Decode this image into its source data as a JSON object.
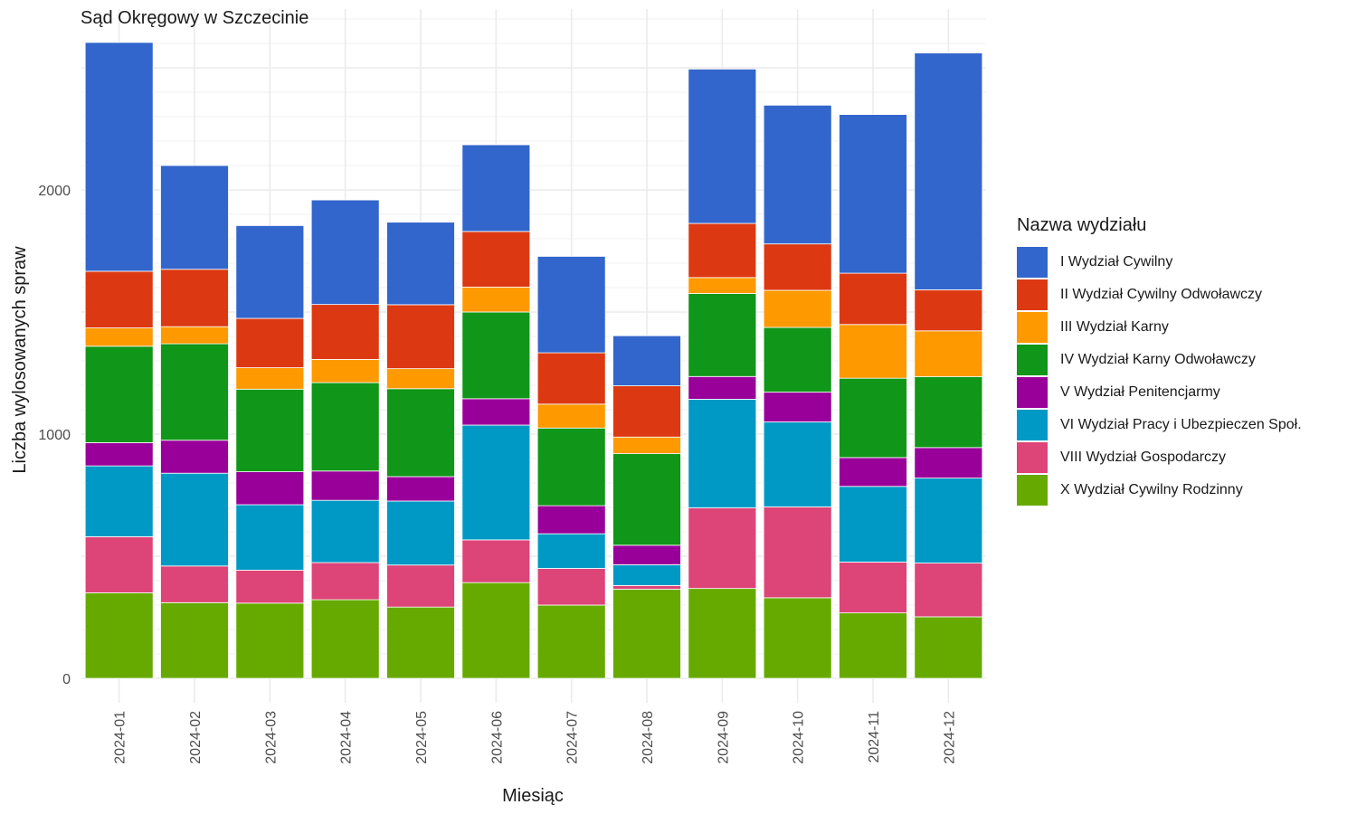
{
  "chart_data": {
    "type": "bar",
    "stacked": true,
    "title": "Sąd Okręgowy w Szczecinie",
    "xlabel": "Miesiąc",
    "ylabel": "Liczba wylosowanych spraw",
    "ylim": [
      0,
      2700
    ],
    "yticks": [
      0,
      1000,
      2000
    ],
    "grid": true,
    "legend_title": "Nazwa wydziału",
    "legend_position": "right",
    "categories": [
      "2024-01",
      "2024-02",
      "2024-03",
      "2024-04",
      "2024-05",
      "2024-06",
      "2024-07",
      "2024-08",
      "2024-09",
      "2024-10",
      "2024-11",
      "2024-12"
    ],
    "series": [
      {
        "name": "X Wydział Cywilny Rodzinny",
        "color": "#66aa00",
        "values": [
          350,
          310,
          308,
          322,
          292,
          392,
          300,
          365,
          368,
          330,
          268,
          252
        ]
      },
      {
        "name": "VIII Wydział Gospodarczy",
        "color": "#dd4477",
        "values": [
          230,
          150,
          135,
          152,
          172,
          175,
          150,
          15,
          330,
          372,
          208,
          220
        ]
      },
      {
        "name": "VI Wydział Pracy i Ubezpieczen Społ.",
        "color": "#0099c6",
        "values": [
          290,
          380,
          268,
          255,
          262,
          470,
          142,
          85,
          445,
          348,
          310,
          348
        ]
      },
      {
        "name": "V Wydział Penitencjarmy",
        "color": "#990099",
        "values": [
          95,
          135,
          135,
          120,
          100,
          108,
          115,
          80,
          93,
          122,
          118,
          125
        ]
      },
      {
        "name": "IV Wydział Karny Odwoławczy",
        "color": "#109618",
        "values": [
          395,
          395,
          338,
          362,
          360,
          355,
          318,
          375,
          340,
          265,
          325,
          290
        ]
      },
      {
        "name": "III Wydział Karny",
        "color": "#ff9900",
        "values": [
          75,
          70,
          88,
          95,
          82,
          102,
          98,
          68,
          65,
          152,
          220,
          188
        ]
      },
      {
        "name": "II Wydział Cywilny Odwoławczy",
        "color": "#dc3912",
        "values": [
          232,
          235,
          202,
          225,
          262,
          228,
          210,
          210,
          222,
          190,
          210,
          168
        ]
      },
      {
        "name": "I Wydział Cywilny",
        "color": "#3366cc",
        "values": [
          937,
          425,
          380,
          428,
          338,
          355,
          395,
          205,
          632,
          568,
          650,
          970
        ]
      }
    ]
  }
}
